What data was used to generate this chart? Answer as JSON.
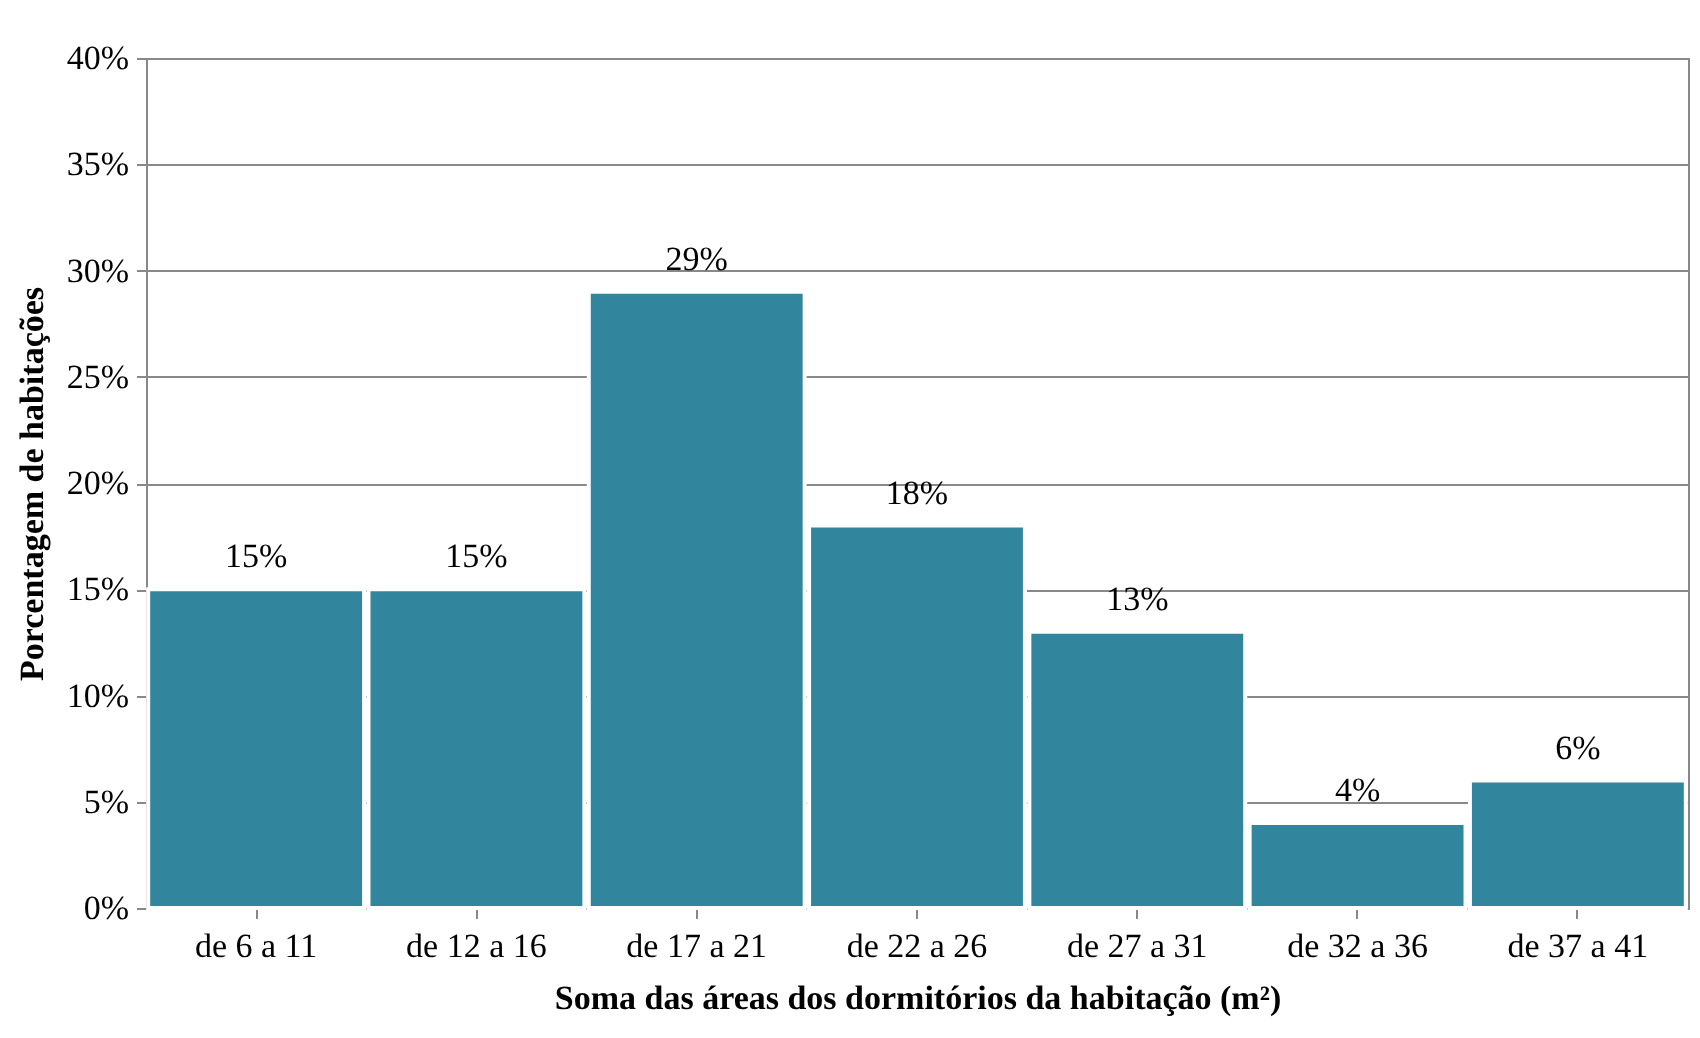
{
  "chart_data": {
    "type": "bar",
    "xlabel": "Soma das áreas dos dormitórios da habitação (m²)",
    "ylabel": "Porcentagem de habitações",
    "categories": [
      "de 6 a 11",
      "de 12 a 16",
      "de 17 a 21",
      "de 22 a 26",
      "de 27 a 31",
      "de 32 a 36",
      "de 37 a 41"
    ],
    "values": [
      15,
      15,
      29,
      18,
      13,
      4,
      6
    ],
    "value_labels": [
      "15%",
      "15%",
      "29%",
      "18%",
      "13%",
      "4%",
      "6%"
    ],
    "color": "#31859c",
    "ylim": [
      0,
      40
    ],
    "yticks": [
      {
        "value": 0,
        "label": "0%"
      },
      {
        "value": 5,
        "label": "5%"
      },
      {
        "value": 10,
        "label": "10%"
      },
      {
        "value": 15,
        "label": "15%"
      },
      {
        "value": 20,
        "label": "20%"
      },
      {
        "value": 25,
        "label": "25%"
      },
      {
        "value": 30,
        "label": "30%"
      },
      {
        "value": 35,
        "label": "35%"
      },
      {
        "value": 40,
        "label": "40%"
      }
    ],
    "grid": "y"
  }
}
